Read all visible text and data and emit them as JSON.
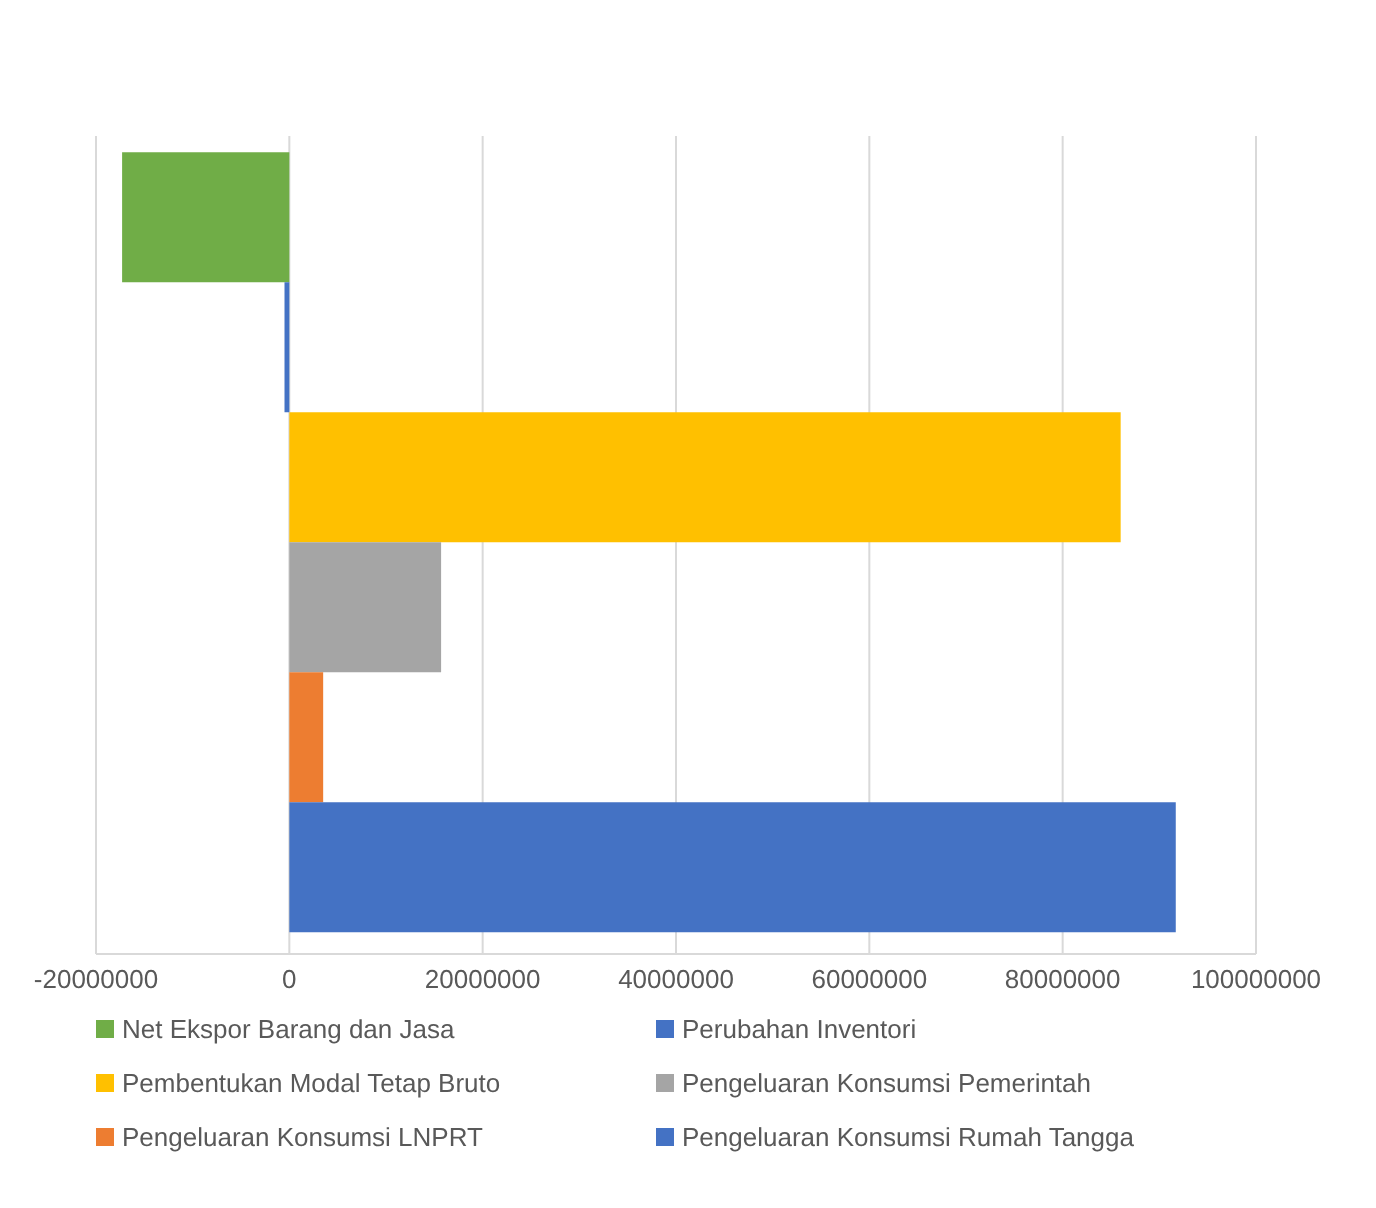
{
  "chart_data": {
    "type": "bar",
    "orientation": "horizontal",
    "categories": [
      null
    ],
    "series": [
      {
        "name": "Net Ekspor Barang dan Jasa",
        "color": "#70ad47",
        "values": [
          -17300000
        ]
      },
      {
        "name": "Perubahan Inventori",
        "color": "#4472c4",
        "values": [
          -500000
        ]
      },
      {
        "name": "Pembentukan Modal Tetap Bruto",
        "color": "#ffc000",
        "values": [
          86000000
        ]
      },
      {
        "name": "Pengeluaran Konsumsi Pemerintah",
        "color": "#a5a5a5",
        "values": [
          15700000
        ]
      },
      {
        "name": "Pengeluaran Konsumsi LNPRT",
        "color": "#ed7d31",
        "values": [
          3500000
        ]
      },
      {
        "name": "Pengeluaran Konsumsi Rumah Tangga",
        "color": "#4472c4",
        "values": [
          91700000
        ]
      }
    ],
    "xlim": [
      -20000000,
      100000000
    ],
    "xticks": [
      -20000000,
      0,
      20000000,
      40000000,
      60000000,
      80000000,
      100000000
    ],
    "grid": "x",
    "legend": "bottom"
  }
}
